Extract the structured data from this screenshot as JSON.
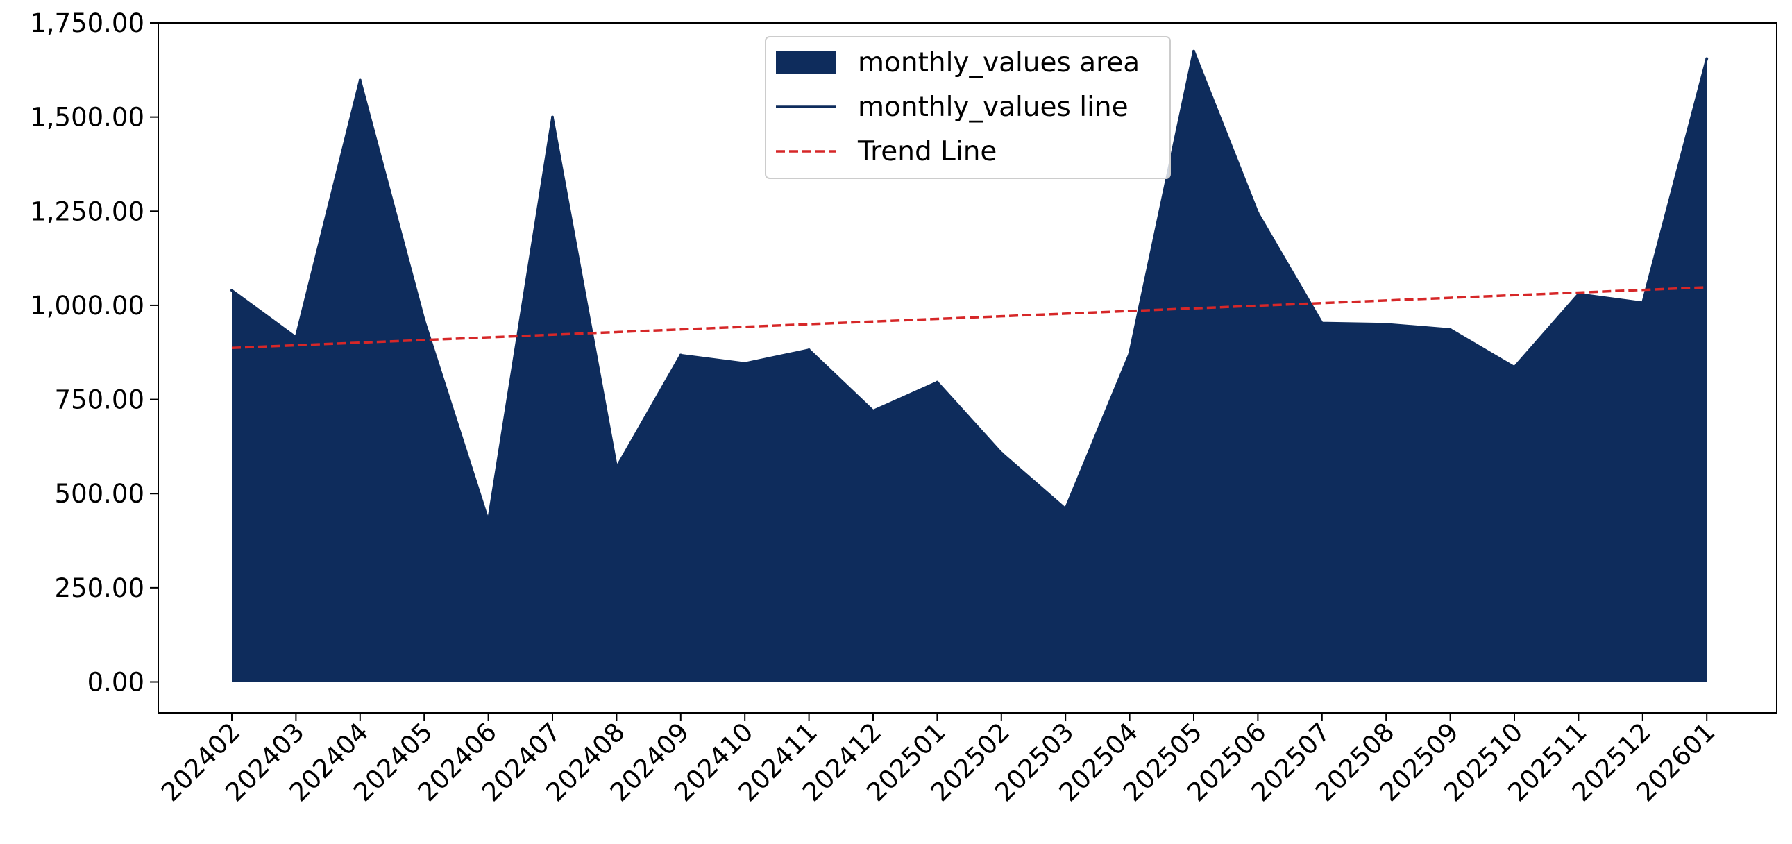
{
  "chart_data": {
    "type": "area",
    "title": "",
    "xlabel": "",
    "ylabel": "",
    "categories": [
      "202402",
      "202403",
      "202404",
      "202405",
      "202406",
      "202407",
      "202408",
      "202409",
      "202410",
      "202411",
      "202412",
      "202501",
      "202502",
      "202503",
      "202504",
      "202505",
      "202506",
      "202507",
      "202508",
      "202509",
      "202510",
      "202511",
      "202512",
      "202601"
    ],
    "series": [
      {
        "name": "monthly_values area",
        "kind": "area",
        "color": "#0e2c5c",
        "values": [
          1040,
          915,
          1598,
          960,
          428,
          1500,
          570,
          868,
          846,
          882,
          720,
          796,
          608,
          460,
          872,
          1675,
          1245,
          953,
          950,
          936,
          836,
          1030,
          1007,
          1655
        ]
      },
      {
        "name": "monthly_values line",
        "kind": "line",
        "color": "#0e2c5c",
        "values": [
          1040,
          915,
          1598,
          960,
          428,
          1500,
          570,
          868,
          846,
          882,
          720,
          796,
          608,
          460,
          872,
          1675,
          1245,
          953,
          950,
          936,
          836,
          1030,
          1007,
          1655
        ]
      },
      {
        "name": "Trend Line",
        "kind": "trend",
        "color": "#d62728",
        "values": [
          887,
          894,
          901,
          908,
          915,
          922,
          929,
          936,
          943,
          950,
          957,
          964,
          971,
          978,
          985,
          992,
          999,
          1006,
          1013,
          1020,
          1027,
          1034,
          1041,
          1048
        ]
      }
    ],
    "yticks": [
      0,
      250,
      500,
      750,
      1000,
      1250,
      1500,
      1750
    ],
    "ytick_labels": [
      "0.00",
      "250.00",
      "500.00",
      "750.00",
      "1,000.00",
      "1,250.00",
      "1,500.00",
      "1,750.00"
    ],
    "ylim": [
      -82,
      1750
    ],
    "grid": false,
    "legend_position": "top-center"
  }
}
